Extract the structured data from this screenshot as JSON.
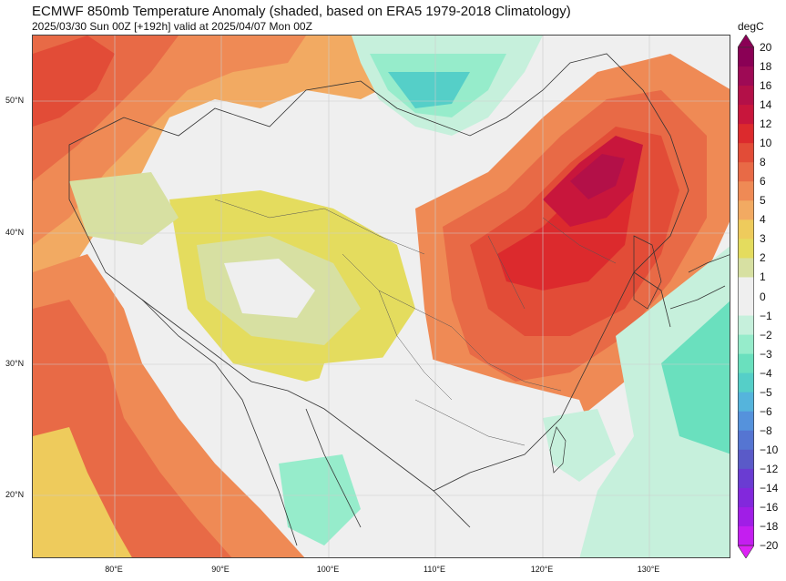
{
  "header": {
    "title": "ECMWF 850mb Temperature Anomaly (shaded, based on ERA5 1979-2018 Climatology)",
    "subtitle": "2025/03/30 Sun 00Z [+192h] valid at 2025/04/07 Mon 00Z"
  },
  "map": {
    "lat_labels": [
      "50°N",
      "40°N",
      "30°N",
      "20°N"
    ],
    "lon_labels": [
      "80°E",
      "90°E",
      "100°E",
      "110°E",
      "120°E",
      "130°E"
    ]
  },
  "colorbar": {
    "unit": "degC",
    "ticks": [
      "20",
      "18",
      "16",
      "14",
      "12",
      "10",
      "8",
      "6",
      "5",
      "4",
      "3",
      "2",
      "1",
      "0",
      "−1",
      "−2",
      "−3",
      "−4",
      "−5",
      "−6",
      "−8",
      "−10",
      "−12",
      "−14",
      "−16",
      "−18",
      "−20"
    ],
    "colors": [
      "#8a0055",
      "#9e0a55",
      "#b31048",
      "#c8163c",
      "#dc2a2d",
      "#e24c37",
      "#e86a46",
      "#ef8a55",
      "#f2aa62",
      "#eecb5c",
      "#e4dc5e",
      "#d7e0a2",
      "#efefef",
      "#efefef",
      "#c6f0dc",
      "#96eccb",
      "#6ae0be",
      "#55cfc8",
      "#55b4dc",
      "#5592dc",
      "#5575d2",
      "#5a5ac8",
      "#6a3cd2",
      "#8228dc",
      "#a01ee6",
      "#c41ef0"
    ]
  }
}
